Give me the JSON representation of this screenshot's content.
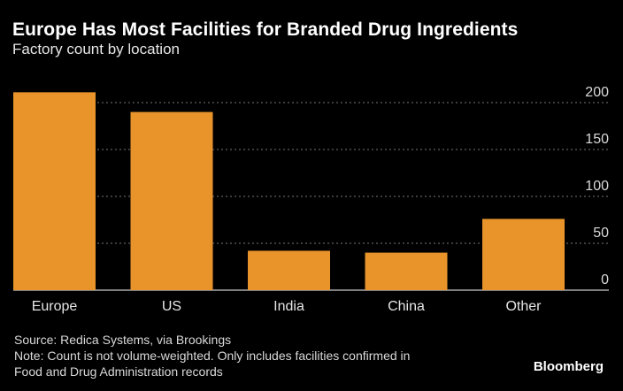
{
  "title": "Europe Has Most Facilities for Branded Drug Ingredients",
  "subtitle": "Factory count by location",
  "source": "Source: Redica Systems, via Brookings",
  "note_line1": "Note: Count is not volume-weighted. Only includes facilities confirmed in",
  "note_line2": "Food and Drug Administration records",
  "brand": "Bloomberg",
  "colors": {
    "bar": "#e8942b",
    "grid": "#777777",
    "background": "#000000"
  },
  "chart_data": {
    "type": "bar",
    "categories": [
      "Europe",
      "US",
      "India",
      "China",
      "Other"
    ],
    "values": [
      211,
      190,
      42,
      40,
      76
    ],
    "title": "Europe Has Most Facilities for Branded Drug Ingredients",
    "subtitle": "Factory count by location",
    "xlabel": "",
    "ylabel": "",
    "ylim": [
      0,
      200
    ],
    "yticks": [
      0,
      50,
      100,
      150,
      200
    ],
    "grid": true,
    "legend": "none"
  }
}
